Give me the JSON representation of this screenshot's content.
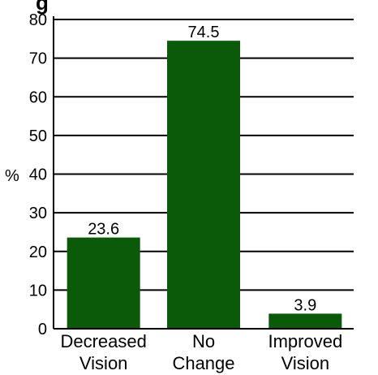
{
  "chart_data": {
    "type": "bar",
    "title": "g",
    "categories": [
      [
        "Decreased",
        "Vision"
      ],
      [
        "No",
        "Change"
      ],
      [
        "Improved",
        "Vision"
      ]
    ],
    "values": [
      23.6,
      74.5,
      3.9
    ],
    "value_labels": [
      "23.6",
      "74.5",
      "3.9"
    ],
    "ylabel": "%",
    "ylim": [
      0,
      80
    ],
    "yticks": [
      0,
      10,
      20,
      30,
      40,
      50,
      60,
      70,
      80
    ],
    "grid": true,
    "bar_color": "#0a5a0a",
    "grid_color": "#000000"
  }
}
